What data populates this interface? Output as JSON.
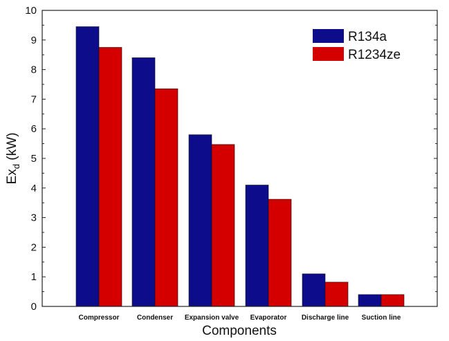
{
  "chart_data": {
    "type": "bar",
    "title": "",
    "xlabel": "Components",
    "ylabel": {
      "main": "Ex",
      "subscript": "d",
      "unit": " (kW)"
    },
    "ylim": [
      0,
      10
    ],
    "yticks": [
      "0",
      "1",
      "2",
      "3",
      "4",
      "5",
      "6",
      "7",
      "8",
      "9",
      "10"
    ],
    "categories": [
      "Compressor",
      "Condenser",
      "Expansion valve",
      "Evaporator",
      "Discharge line",
      "Suction line"
    ],
    "series": [
      {
        "name": "R134a",
        "color": "#0d0d8c",
        "values": [
          9.45,
          8.4,
          5.8,
          4.1,
          1.1,
          0.4
        ]
      },
      {
        "name": "R1234ze",
        "color": "#d40000",
        "values": [
          8.75,
          7.35,
          5.47,
          3.62,
          0.82,
          0.4
        ]
      }
    ],
    "legend": {
      "position": "top-right"
    },
    "grid": false
  }
}
